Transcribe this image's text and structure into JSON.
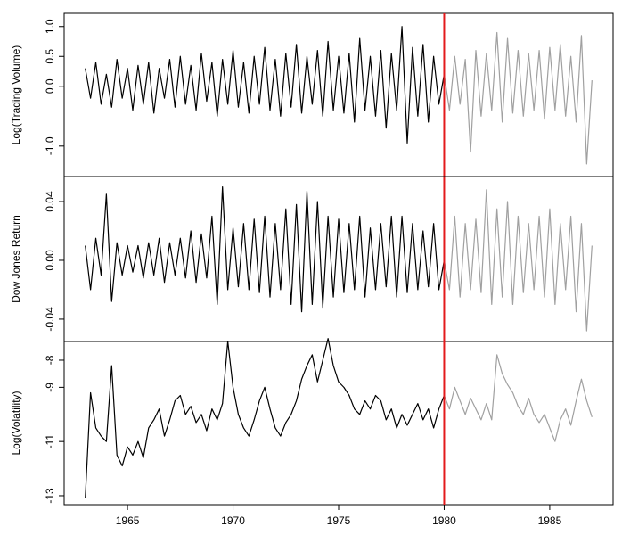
{
  "chart_data": [
    {
      "type": "line",
      "ylabel": "Log(Trading Volume)",
      "xlim": [
        1962,
        1988
      ],
      "ylim": [
        -1.51,
        1.22
      ],
      "yticks": [
        {
          "value": -1.0,
          "label": "-1.0"
        },
        {
          "value": 0.0,
          "label": "0.0"
        },
        {
          "value": 0.5,
          "label": "0.5"
        },
        {
          "value": 1.0,
          "label": "1.0"
        }
      ],
      "vline": 1980,
      "vline_color": "#e31a1c",
      "series": [
        {
          "color": "#000000",
          "x": [
            1963,
            1963.25,
            1963.5,
            1963.75,
            1964,
            1964.25,
            1964.5,
            1964.75,
            1965,
            1965.25,
            1965.5,
            1965.75,
            1966,
            1966.25,
            1966.5,
            1966.75,
            1967,
            1967.25,
            1967.5,
            1967.75,
            1968,
            1968.25,
            1968.5,
            1968.75,
            1969,
            1969.25,
            1969.5,
            1969.75,
            1970,
            1970.25,
            1970.5,
            1970.75,
            1971,
            1971.25,
            1971.5,
            1971.75,
            1972,
            1972.25,
            1972.5,
            1972.75,
            1973,
            1973.25,
            1973.5,
            1973.75,
            1974,
            1974.25,
            1974.5,
            1974.75,
            1975,
            1975.25,
            1975.5,
            1975.75,
            1976,
            1976.25,
            1976.5,
            1976.75,
            1977,
            1977.25,
            1977.5,
            1977.75,
            1978,
            1978.25,
            1978.5,
            1978.75,
            1979,
            1979.25,
            1979.5,
            1979.75,
            1980
          ],
          "values": [
            0.3,
            -0.2,
            0.4,
            -0.3,
            0.2,
            -0.35,
            0.45,
            -0.2,
            0.3,
            -0.4,
            0.35,
            -0.3,
            0.4,
            -0.45,
            0.3,
            -0.2,
            0.45,
            -0.35,
            0.5,
            -0.3,
            0.35,
            -0.4,
            0.55,
            -0.25,
            0.4,
            -0.5,
            0.45,
            -0.3,
            0.6,
            -0.35,
            0.4,
            -0.45,
            0.5,
            -0.3,
            0.65,
            -0.4,
            0.45,
            -0.5,
            0.55,
            -0.35,
            0.7,
            -0.45,
            0.5,
            -0.3,
            0.6,
            -0.5,
            0.75,
            -0.4,
            0.5,
            -0.45,
            0.55,
            -0.6,
            0.8,
            -0.4,
            0.5,
            -0.5,
            0.6,
            -0.7,
            0.55,
            -0.4,
            1.0,
            -0.95,
            0.65,
            -0.5,
            0.7,
            -0.6,
            0.5,
            -0.3,
            0.2
          ]
        },
        {
          "color": "#a0a0a0",
          "x": [
            1980,
            1980.25,
            1980.5,
            1980.75,
            1981,
            1981.25,
            1981.5,
            1981.75,
            1982,
            1982.25,
            1982.5,
            1982.75,
            1983,
            1983.25,
            1983.5,
            1983.75,
            1984,
            1984.25,
            1984.5,
            1984.75,
            1985,
            1985.25,
            1985.5,
            1985.75,
            1986,
            1986.25,
            1986.5,
            1986.75,
            1987
          ],
          "values": [
            0.2,
            -0.4,
            0.5,
            -0.3,
            0.45,
            -1.1,
            0.6,
            -0.5,
            0.55,
            -0.4,
            0.9,
            -0.6,
            0.8,
            -0.45,
            0.6,
            -0.5,
            0.55,
            -0.4,
            0.6,
            -0.55,
            0.65,
            -0.4,
            0.7,
            -0.5,
            0.5,
            -0.6,
            0.85,
            -1.3,
            0.1
          ]
        }
      ]
    },
    {
      "type": "line",
      "ylabel": "Dow Jones Return",
      "xlim": [
        1962,
        1988
      ],
      "ylim": [
        -0.0552,
        0.057
      ],
      "yticks": [
        {
          "value": -0.04,
          "label": "-0.04"
        },
        {
          "value": 0.0,
          "label": "0.00"
        },
        {
          "value": 0.04,
          "label": "0.04"
        }
      ],
      "vline": 1980,
      "vline_color": "#e31a1c",
      "series": [
        {
          "color": "#000000",
          "x": [
            1963,
            1963.25,
            1963.5,
            1963.75,
            1964,
            1964.25,
            1964.5,
            1964.75,
            1965,
            1965.25,
            1965.5,
            1965.75,
            1966,
            1966.25,
            1966.5,
            1966.75,
            1967,
            1967.25,
            1967.5,
            1967.75,
            1968,
            1968.25,
            1968.5,
            1968.75,
            1969,
            1969.25,
            1969.5,
            1969.75,
            1970,
            1970.25,
            1970.5,
            1970.75,
            1971,
            1971.25,
            1971.5,
            1971.75,
            1972,
            1972.25,
            1972.5,
            1972.75,
            1973,
            1973.25,
            1973.5,
            1973.75,
            1974,
            1974.25,
            1974.5,
            1974.75,
            1975,
            1975.25,
            1975.5,
            1975.75,
            1976,
            1976.25,
            1976.5,
            1976.75,
            1977,
            1977.25,
            1977.5,
            1977.75,
            1978,
            1978.25,
            1978.5,
            1978.75,
            1979,
            1979.25,
            1979.5,
            1979.75,
            1980
          ],
          "values": [
            0.01,
            -0.02,
            0.015,
            -0.01,
            0.045,
            -0.028,
            0.012,
            -0.01,
            0.01,
            -0.008,
            0.01,
            -0.012,
            0.012,
            -0.01,
            0.015,
            -0.015,
            0.012,
            -0.01,
            0.015,
            -0.012,
            0.02,
            -0.015,
            0.018,
            -0.012,
            0.03,
            -0.03,
            0.05,
            -0.02,
            0.022,
            -0.018,
            0.025,
            -0.02,
            0.028,
            -0.022,
            0.03,
            -0.025,
            0.025,
            -0.02,
            0.035,
            -0.03,
            0.038,
            -0.035,
            0.047,
            -0.03,
            0.04,
            -0.032,
            0.03,
            -0.025,
            0.028,
            -0.022,
            0.025,
            -0.02,
            0.03,
            -0.025,
            0.022,
            -0.02,
            0.025,
            -0.018,
            0.03,
            -0.025,
            0.03,
            -0.022,
            0.025,
            -0.02,
            0.02,
            -0.018,
            0.025,
            -0.02,
            0.0
          ]
        },
        {
          "color": "#a0a0a0",
          "x": [
            1980,
            1980.25,
            1980.5,
            1980.75,
            1981,
            1981.25,
            1981.5,
            1981.75,
            1982,
            1982.25,
            1982.5,
            1982.75,
            1983,
            1983.25,
            1983.5,
            1983.75,
            1984,
            1984.25,
            1984.5,
            1984.75,
            1985,
            1985.25,
            1985.5,
            1985.75,
            1986,
            1986.25,
            1986.5,
            1986.75,
            1987
          ],
          "values": [
            0.0,
            -0.02,
            0.03,
            -0.025,
            0.025,
            -0.02,
            0.028,
            -0.022,
            0.048,
            -0.03,
            0.035,
            -0.025,
            0.04,
            -0.03,
            0.03,
            -0.022,
            0.025,
            -0.02,
            0.03,
            -0.025,
            0.035,
            -0.03,
            0.025,
            -0.02,
            0.03,
            -0.035,
            0.025,
            -0.048,
            0.01
          ]
        }
      ]
    },
    {
      "type": "line",
      "ylabel": "Log(Volatility)",
      "xlim": [
        1962,
        1988
      ],
      "ylim": [
        -13.33,
        -7.31
      ],
      "yticks": [
        -13,
        -11,
        -9,
        -8
      ],
      "xticks": [
        1965,
        1970,
        1975,
        1980,
        1985
      ],
      "vline": 1980,
      "vline_color": "#e31a1c",
      "series": [
        {
          "color": "#000000",
          "x": [
            1963,
            1963.25,
            1963.5,
            1963.75,
            1964,
            1964.25,
            1964.5,
            1964.75,
            1965,
            1965.25,
            1965.5,
            1965.75,
            1966,
            1966.25,
            1966.5,
            1966.75,
            1967,
            1967.25,
            1967.5,
            1967.75,
            1968,
            1968.25,
            1968.5,
            1968.75,
            1969,
            1969.25,
            1969.5,
            1969.75,
            1970,
            1970.25,
            1970.5,
            1970.75,
            1971,
            1971.25,
            1971.5,
            1971.75,
            1972,
            1972.25,
            1972.5,
            1972.75,
            1973,
            1973.25,
            1973.5,
            1973.75,
            1974,
            1974.25,
            1974.5,
            1974.75,
            1975,
            1975.25,
            1975.5,
            1975.75,
            1976,
            1976.25,
            1976.5,
            1976.75,
            1977,
            1977.25,
            1977.5,
            1977.75,
            1978,
            1978.25,
            1978.5,
            1978.75,
            1979,
            1979.25,
            1979.5,
            1979.75,
            1980
          ],
          "values": [
            -13.1,
            -9.2,
            -10.5,
            -10.8,
            -11.0,
            -8.2,
            -11.5,
            -11.9,
            -11.2,
            -11.5,
            -11.0,
            -11.6,
            -10.5,
            -10.2,
            -9.8,
            -10.8,
            -10.2,
            -9.5,
            -9.3,
            -10.0,
            -9.7,
            -10.3,
            -10.0,
            -10.6,
            -9.8,
            -10.2,
            -9.6,
            -7.3,
            -9.0,
            -10.0,
            -10.5,
            -10.8,
            -10.2,
            -9.5,
            -9.0,
            -9.8,
            -10.5,
            -10.8,
            -10.3,
            -10.0,
            -9.5,
            -8.7,
            -8.2,
            -7.8,
            -8.8,
            -8.0,
            -7.2,
            -8.2,
            -8.8,
            -9.0,
            -9.3,
            -9.8,
            -10.0,
            -9.5,
            -9.8,
            -9.3,
            -9.5,
            -10.2,
            -9.8,
            -10.5,
            -10.0,
            -10.4,
            -10.0,
            -9.6,
            -10.2,
            -9.8,
            -10.5,
            -9.8,
            -9.3
          ]
        },
        {
          "color": "#a0a0a0",
          "x": [
            1980,
            1980.25,
            1980.5,
            1980.75,
            1981,
            1981.25,
            1981.5,
            1981.75,
            1982,
            1982.25,
            1982.5,
            1982.75,
            1983,
            1983.25,
            1983.5,
            1983.75,
            1984,
            1984.25,
            1984.5,
            1984.75,
            1985,
            1985.25,
            1985.5,
            1985.75,
            1986,
            1986.25,
            1986.5,
            1986.75,
            1987
          ],
          "values": [
            -9.3,
            -9.8,
            -9.0,
            -9.5,
            -10.0,
            -9.4,
            -9.8,
            -10.2,
            -9.6,
            -10.2,
            -7.8,
            -8.5,
            -8.9,
            -9.2,
            -9.7,
            -10.0,
            -9.4,
            -10.0,
            -10.3,
            -10.0,
            -10.5,
            -11.0,
            -10.2,
            -9.8,
            -10.4,
            -9.5,
            -8.7,
            -9.5,
            -10.1
          ]
        }
      ]
    }
  ]
}
